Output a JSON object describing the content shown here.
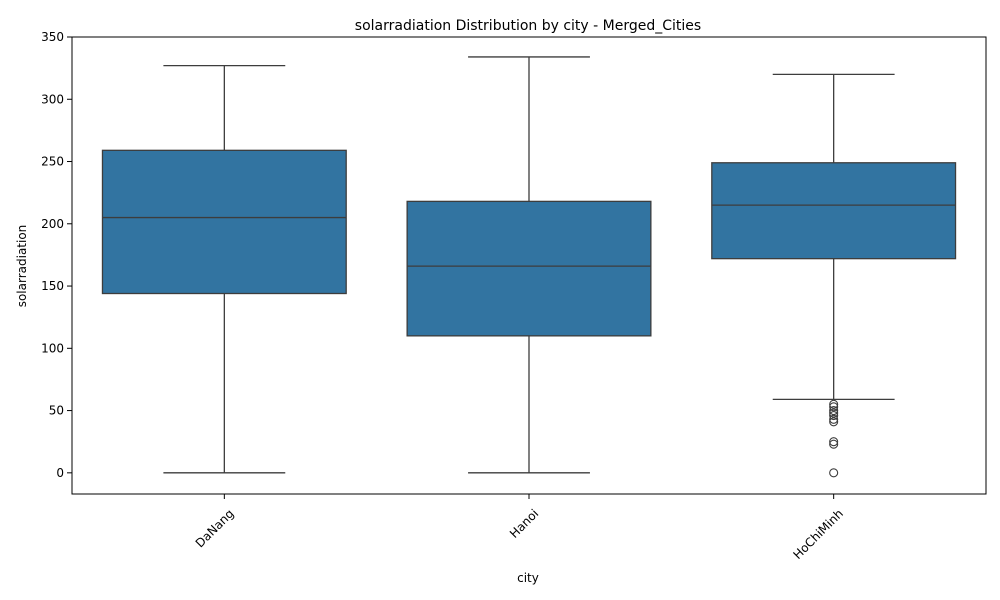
{
  "chart_data": {
    "type": "box",
    "title": "solarradiation Distribution by city - Merged_Cities",
    "xlabel": "city",
    "ylabel": "solarradiation",
    "ylim": [
      -17,
      350
    ],
    "yticks": [
      0,
      50,
      100,
      150,
      200,
      250,
      300,
      350
    ],
    "grid": false,
    "box_color": "#3274a1",
    "line_color": "#3d3d3d",
    "boxes": [
      {
        "category": "DaNang",
        "whisker_low": 0,
        "q1": 144,
        "median": 205,
        "q3": 259,
        "whisker_high": 327,
        "outliers": []
      },
      {
        "category": "Hanoi",
        "whisker_low": 0,
        "q1": 110,
        "median": 166,
        "q3": 218,
        "whisker_high": 334,
        "outliers": []
      },
      {
        "category": "HoChiMinh",
        "whisker_low": 59,
        "q1": 172,
        "median": 215,
        "q3": 249,
        "whisker_high": 320,
        "outliers": [
          55,
          53,
          50,
          48,
          46,
          43,
          41,
          25,
          23,
          0
        ]
      }
    ]
  }
}
